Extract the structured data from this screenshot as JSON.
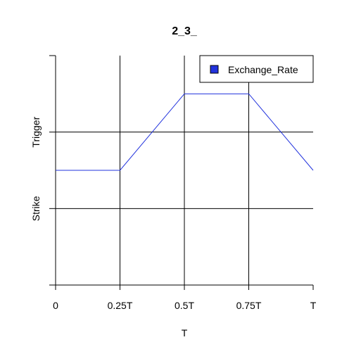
{
  "chart_data": {
    "type": "line",
    "title": "2_3_",
    "xlabel": "T",
    "x_ticks": [
      {
        "value": 0,
        "label": "0"
      },
      {
        "value": 0.25,
        "label": "0.25T"
      },
      {
        "value": 0.5,
        "label": "0.5T"
      },
      {
        "value": 0.75,
        "label": "0.75T"
      },
      {
        "value": 1,
        "label": "T"
      }
    ],
    "y_ticks": [
      {
        "value": 0
      },
      {
        "value": 1,
        "label": "Strike"
      },
      {
        "value": 2,
        "label": "Trigger"
      },
      {
        "value": 3
      }
    ],
    "xlim": [
      0,
      1
    ],
    "ylim": [
      0,
      3
    ],
    "grid": true,
    "legend_position": "top-right",
    "series": [
      {
        "name": "Exchange_Rate",
        "color": "#2233dd",
        "x": [
          0,
          0.25,
          0.5,
          0.75,
          1
        ],
        "y": [
          1.5,
          1.5,
          2.5,
          2.5,
          1.5
        ]
      }
    ]
  }
}
